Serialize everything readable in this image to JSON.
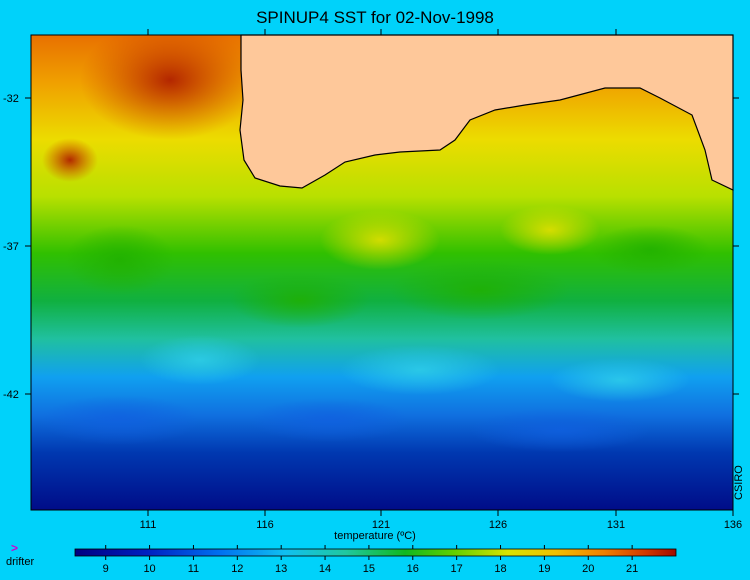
{
  "title": "SPINUP4 SST for 02-Nov-1998",
  "credit": "CSIRO",
  "map": {
    "lat_ticks": [
      "-32",
      "-37",
      "-42"
    ],
    "lon_ticks": [
      "111",
      "116",
      "121",
      "126",
      "131",
      "136"
    ]
  },
  "colorbar": {
    "title": "temperature (ºC)",
    "range": [
      8.3,
      22.0
    ],
    "ticks": [
      "9",
      "10",
      "11",
      "12",
      "13",
      "14",
      "15",
      "16",
      "17",
      "18",
      "19",
      "20",
      "21"
    ]
  },
  "legend": {
    "marker": ">",
    "label": "drifter"
  },
  "colors": {
    "background": "#00d2fa",
    "land": "#fec89a",
    "coast": "#000000",
    "cold": "#000080",
    "warm": "#a01000"
  }
}
